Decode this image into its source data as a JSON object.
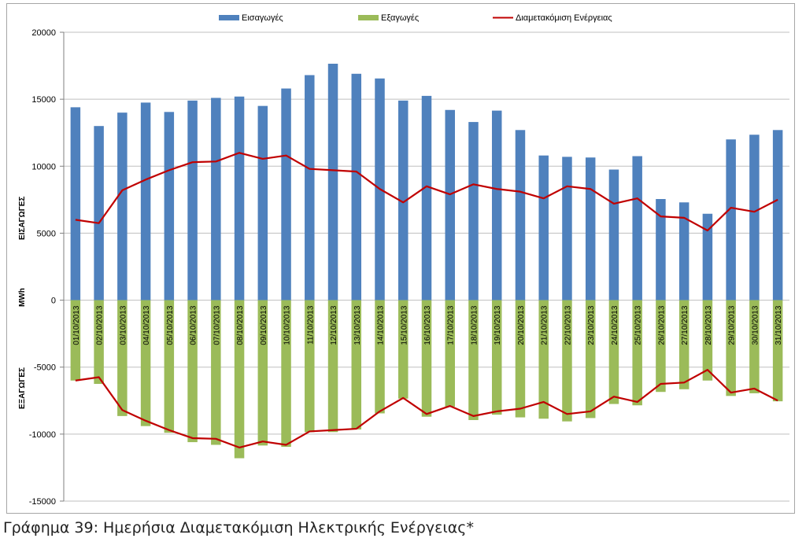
{
  "caption": "Γράφημα 39: Ημερήσια Διαμετακόμιση Ηλεκτρικής Ενέργειας*",
  "chart_data": {
    "type": "bar",
    "title": "",
    "ylabel_unit": "MWh",
    "ylabel_top": "ΕΙΣΑΓΩΓΕΣ",
    "ylabel_bottom": "ΕΞΑΓΩΓΕΣ",
    "ylim": [
      -15000,
      20000
    ],
    "yticks": [
      20000,
      15000,
      10000,
      5000,
      0,
      -5000,
      -10000,
      -15000
    ],
    "grid": true,
    "legend_position": "top",
    "categories": [
      "01/10/2013",
      "02/10/2013",
      "03/10/2013",
      "04/10/2013",
      "05/10/2013",
      "06/10/2013",
      "07/10/2013",
      "08/10/2013",
      "09/10/2013",
      "10/10/2013",
      "11/10/2013",
      "12/10/2013",
      "13/10/2013",
      "14/10/2013",
      "15/10/2013",
      "16/10/2013",
      "17/10/2013",
      "18/10/2013",
      "19/10/2013",
      "20/10/2013",
      "21/10/2013",
      "22/10/2013",
      "23/10/2013",
      "24/10/2013",
      "25/10/2013",
      "26/10/2013",
      "27/10/2013",
      "28/10/2013",
      "29/10/2013",
      "30/10/2013",
      "31/10/2013"
    ],
    "series": [
      {
        "name": "Εισαγωγές",
        "kind": "bar",
        "color": "#4f81bd",
        "values": [
          14400,
          13000,
          14000,
          14750,
          14050,
          14900,
          15100,
          15200,
          14500,
          15800,
          16800,
          17650,
          16900,
          16550,
          14900,
          15250,
          14200,
          13300,
          14150,
          12700,
          10800,
          10700,
          10650,
          9750,
          10750,
          7550,
          7300,
          6450,
          12000,
          12350,
          12700
        ]
      },
      {
        "name": "Εξαγωγές",
        "kind": "bar",
        "color": "#9bbb59",
        "values": [
          -6000,
          -6250,
          -8650,
          -9400,
          -9900,
          -10600,
          -10800,
          -11800,
          -10850,
          -10950,
          -9850,
          -9850,
          -9650,
          -8450,
          -7350,
          -8700,
          -7950,
          -8950,
          -8550,
          -8750,
          -8850,
          -9050,
          -8800,
          -7750,
          -7850,
          -6850,
          -6650,
          -6000,
          -7150,
          -6950,
          -7550
        ]
      },
      {
        "name": "Διαμετακόμιση Ενέργειας",
        "kind": "line",
        "color": "#c00000",
        "values": [
          6000,
          5750,
          8200,
          9000,
          9700,
          10300,
          10350,
          11000,
          10550,
          10800,
          9800,
          9700,
          9600,
          8300,
          7300,
          8500,
          7900,
          8650,
          8300,
          8100,
          7600,
          8500,
          8300,
          7200,
          7600,
          6250,
          6150,
          5200,
          6900,
          6600,
          7500
        ],
        "mirrored": true
      }
    ]
  }
}
